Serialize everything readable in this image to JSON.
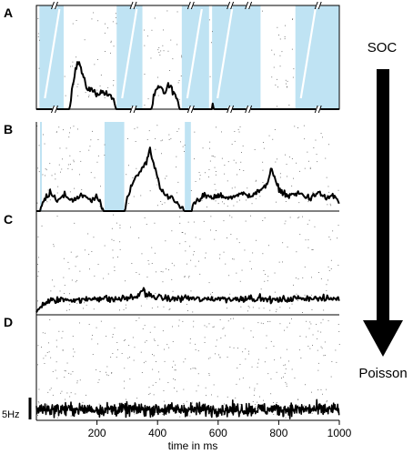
{
  "chart_data": {
    "type": "line",
    "xlabel": "time in ms",
    "xlim": [
      0,
      1000
    ],
    "x_ticks": [
      "200",
      "400",
      "600",
      "800",
      "1000"
    ],
    "scale_bar": "5Hz",
    "arrow_top": "SOC",
    "arrow_bottom": "Poisson",
    "panels": [
      {
        "letter": "A",
        "shaded_intervals": [
          [
            10,
            90
          ],
          [
            265,
            350
          ],
          [
            480,
            570
          ],
          [
            580,
            740
          ],
          [
            855,
            1000
          ]
        ],
        "axis_breaks": [
          60,
          320,
          510,
          640,
          700,
          930
        ],
        "rate": [
          [
            0,
            0
          ],
          [
            110,
            0
          ],
          [
            118,
            5
          ],
          [
            128,
            9
          ],
          [
            140,
            11
          ],
          [
            152,
            8
          ],
          [
            165,
            5
          ],
          [
            180,
            4.5
          ],
          [
            200,
            3.5
          ],
          [
            220,
            4
          ],
          [
            240,
            3
          ],
          [
            255,
            2.5
          ],
          [
            262,
            0
          ],
          [
            380,
            0
          ],
          [
            388,
            3
          ],
          [
            398,
            4.5
          ],
          [
            410,
            5
          ],
          [
            422,
            3.5
          ],
          [
            435,
            5.5
          ],
          [
            448,
            4.5
          ],
          [
            460,
            3
          ],
          [
            472,
            0
          ],
          [
            578,
            0
          ],
          [
            582,
            1.5
          ],
          [
            586,
            0
          ],
          [
            1000,
            0
          ]
        ]
      },
      {
        "letter": "B",
        "shaded_intervals": [
          [
            12,
            18
          ],
          [
            225,
            290
          ],
          [
            490,
            510
          ]
        ],
        "rate": [
          [
            0,
            0
          ],
          [
            12,
            0
          ],
          [
            22,
            2
          ],
          [
            45,
            4.5
          ],
          [
            70,
            2.5
          ],
          [
            95,
            3.5
          ],
          [
            120,
            2.5
          ],
          [
            150,
            3.5
          ],
          [
            180,
            2.5
          ],
          [
            200,
            3
          ],
          [
            215,
            1.5
          ],
          [
            222,
            0
          ],
          [
            292,
            0
          ],
          [
            300,
            3
          ],
          [
            320,
            7
          ],
          [
            340,
            9
          ],
          [
            360,
            11
          ],
          [
            375,
            14
          ],
          [
            385,
            11
          ],
          [
            395,
            9
          ],
          [
            410,
            5
          ],
          [
            425,
            4
          ],
          [
            445,
            3
          ],
          [
            460,
            2
          ],
          [
            485,
            0.5
          ],
          [
            488,
            0
          ],
          [
            512,
            0
          ],
          [
            520,
            2
          ],
          [
            550,
            3.5
          ],
          [
            580,
            3
          ],
          [
            610,
            3.5
          ],
          [
            640,
            3
          ],
          [
            670,
            4
          ],
          [
            700,
            3.5
          ],
          [
            730,
            4.5
          ],
          [
            750,
            5
          ],
          [
            765,
            7
          ],
          [
            775,
            10
          ],
          [
            785,
            7.5
          ],
          [
            800,
            5
          ],
          [
            830,
            3.5
          ],
          [
            870,
            4
          ],
          [
            900,
            3
          ],
          [
            930,
            4
          ],
          [
            960,
            3
          ],
          [
            980,
            3.5
          ],
          [
            1000,
            2
          ]
        ]
      },
      {
        "letter": "C",
        "shaded_intervals": [],
        "rate": [
          [
            0,
            0.5
          ],
          [
            20,
            2.5
          ],
          [
            50,
            3.2
          ],
          [
            100,
            3.6
          ],
          [
            150,
            3.3
          ],
          [
            200,
            3.9
          ],
          [
            250,
            3.5
          ],
          [
            300,
            3.8
          ],
          [
            335,
            4.2
          ],
          [
            350,
            6
          ],
          [
            360,
            4.6
          ],
          [
            400,
            4
          ],
          [
            450,
            3.6
          ],
          [
            500,
            3.9
          ],
          [
            550,
            3.4
          ],
          [
            600,
            3.8
          ],
          [
            650,
            3.5
          ],
          [
            700,
            3.9
          ],
          [
            750,
            3.6
          ],
          [
            800,
            3.3
          ],
          [
            850,
            3.7
          ],
          [
            900,
            3.9
          ],
          [
            950,
            3.6
          ],
          [
            1000,
            3.8
          ]
        ]
      },
      {
        "letter": "D",
        "shaded_intervals": [],
        "rate": [
          [
            0,
            2.5
          ],
          [
            1000,
            2.5
          ]
        ]
      }
    ]
  }
}
